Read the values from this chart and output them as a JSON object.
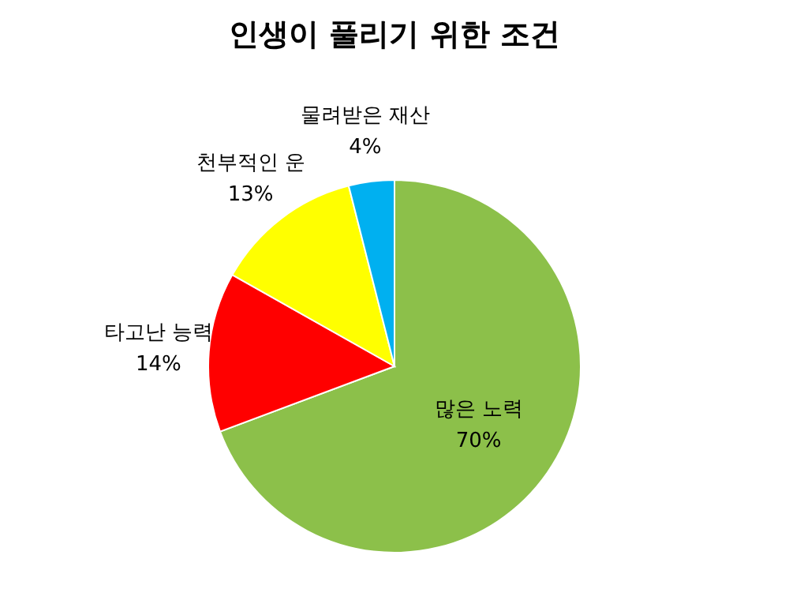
{
  "chart_data": {
    "type": "pie",
    "title": "인생이 풀리기 위한 조건",
    "categories": [
      "많은 노력",
      "타고난 능력",
      "천부적인 운",
      "물려받은 재산"
    ],
    "values": [
      70,
      14,
      13,
      4
    ],
    "value_labels": [
      "70%",
      "14%",
      "13%",
      "4%"
    ],
    "colors": [
      "#8cc04a",
      "#ff0000",
      "#ffff00",
      "#00b0f0"
    ],
    "legend": false
  }
}
